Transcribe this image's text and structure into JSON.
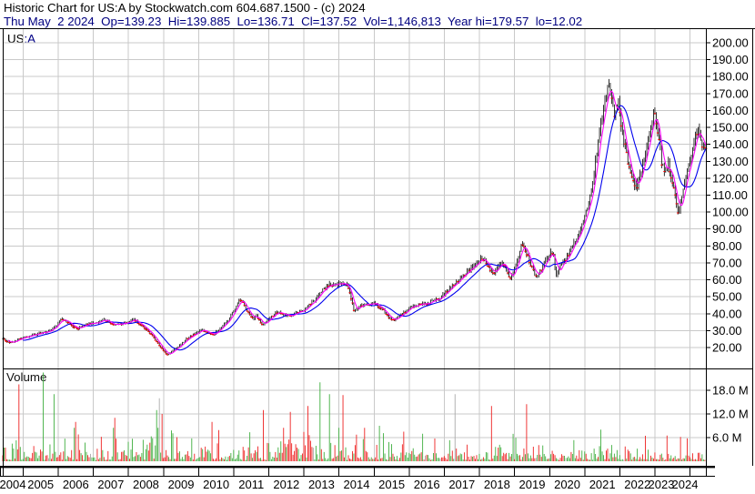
{
  "header": {
    "line1": "Historic Chart for US:A by Stockwatch.com 604.687.1500 - (c) 2024",
    "line2": "Thu May  2 2024  Op=139.23  Hi=139.885  Lo=136.71  Cl=137.52  Vol=1,146,813  Year hi=179.57  lo=12.02"
  },
  "symbol": {
    "prefix": "US",
    "suffix": ":A"
  },
  "volume_label": "Volume",
  "chart_data": {
    "type": "candlestick+volume",
    "symbol": "US:A",
    "x_axis": {
      "year_labels": [
        "2004",
        "2005",
        "2006",
        "2007",
        "2008",
        "2009",
        "2010",
        "2011",
        "2012",
        "2013",
        "2014",
        "2015",
        "2016",
        "2017",
        "2018",
        "2019",
        "2020",
        "2021",
        "2022",
        "2023",
        "2024"
      ]
    },
    "price_axis": {
      "tick_labels": [
        "200.00",
        "190.00",
        "180.00",
        "170.00",
        "160.00",
        "150.00",
        "140.00",
        "130.00",
        "120.00",
        "110.00",
        "100.00",
        "90.00",
        "80.00",
        "70.00",
        "60.00",
        "50.00",
        "40.00",
        "30.00",
        "20.00"
      ],
      "min": 20,
      "max": 200,
      "grid": true
    },
    "volume_axis": {
      "tick_labels": [
        "18.0 M",
        "12.0 M",
        "6.0 M"
      ],
      "unit": "M",
      "grid": true
    },
    "t_min": 2004.42,
    "t_max": 2024.45,
    "bars_per_year": 26,
    "ma_fast_bars": 5,
    "ma_slow_bars": 16,
    "seed": 20240502,
    "price_anchors": [
      [
        2004.42,
        25.5
      ],
      [
        2004.55,
        23.5
      ],
      [
        2004.7,
        23
      ],
      [
        2004.85,
        24.5
      ],
      [
        2005.0,
        26
      ],
      [
        2005.2,
        27
      ],
      [
        2005.4,
        28
      ],
      [
        2005.6,
        29
      ],
      [
        2005.8,
        30.5
      ],
      [
        2005.95,
        33
      ],
      [
        2006.08,
        37
      ],
      [
        2006.2,
        36.5
      ],
      [
        2006.32,
        34
      ],
      [
        2006.45,
        32
      ],
      [
        2006.55,
        31
      ],
      [
        2006.7,
        33
      ],
      [
        2006.85,
        34
      ],
      [
        2007.0,
        34.5
      ],
      [
        2007.15,
        35
      ],
      [
        2007.3,
        36.3
      ],
      [
        2007.45,
        35
      ],
      [
        2007.6,
        33
      ],
      [
        2007.75,
        33.5
      ],
      [
        2007.9,
        34.5
      ],
      [
        2008.05,
        35.5
      ],
      [
        2008.15,
        36.8
      ],
      [
        2008.3,
        34
      ],
      [
        2008.45,
        32
      ],
      [
        2008.6,
        29
      ],
      [
        2008.75,
        25
      ],
      [
        2008.9,
        21
      ],
      [
        2009.0,
        18
      ],
      [
        2009.1,
        15.5
      ],
      [
        2009.2,
        17
      ],
      [
        2009.35,
        19.5
      ],
      [
        2009.5,
        22
      ],
      [
        2009.65,
        25
      ],
      [
        2009.8,
        27
      ],
      [
        2009.95,
        29
      ],
      [
        2010.1,
        30.5
      ],
      [
        2010.25,
        29
      ],
      [
        2010.4,
        27.5
      ],
      [
        2010.55,
        30
      ],
      [
        2010.7,
        33
      ],
      [
        2010.85,
        36.5
      ],
      [
        2011.0,
        42
      ],
      [
        2011.12,
        47
      ],
      [
        2011.22,
        48.5
      ],
      [
        2011.33,
        44
      ],
      [
        2011.45,
        40
      ],
      [
        2011.55,
        36.5
      ],
      [
        2011.65,
        39
      ],
      [
        2011.8,
        33.5
      ],
      [
        2011.95,
        35.5
      ],
      [
        2012.1,
        38.5
      ],
      [
        2012.25,
        41.5
      ],
      [
        2012.4,
        40
      ],
      [
        2012.55,
        38.5
      ],
      [
        2012.7,
        39.5
      ],
      [
        2012.85,
        41
      ],
      [
        2013.0,
        42.5
      ],
      [
        2013.15,
        45
      ],
      [
        2013.3,
        48
      ],
      [
        2013.45,
        52
      ],
      [
        2013.6,
        55
      ],
      [
        2013.75,
        57.5
      ],
      [
        2013.9,
        57
      ],
      [
        2014.05,
        58
      ],
      [
        2014.2,
        57.5
      ],
      [
        2014.3,
        53
      ],
      [
        2014.42,
        42.5
      ],
      [
        2014.55,
        44
      ],
      [
        2014.7,
        46
      ],
      [
        2014.85,
        45
      ],
      [
        2015.0,
        46
      ],
      [
        2015.15,
        44
      ],
      [
        2015.3,
        41
      ],
      [
        2015.45,
        37.5
      ],
      [
        2015.55,
        36
      ],
      [
        2015.7,
        38.5
      ],
      [
        2015.85,
        40.5
      ],
      [
        2016.0,
        43
      ],
      [
        2016.15,
        44.5
      ],
      [
        2016.3,
        45.5
      ],
      [
        2016.5,
        46
      ],
      [
        2016.7,
        47.5
      ],
      [
        2016.85,
        49
      ],
      [
        2017.0,
        52
      ],
      [
        2017.2,
        56
      ],
      [
        2017.4,
        60
      ],
      [
        2017.6,
        64
      ],
      [
        2017.8,
        68
      ],
      [
        2017.95,
        71
      ],
      [
        2018.08,
        73
      ],
      [
        2018.25,
        68
      ],
      [
        2018.4,
        63.5
      ],
      [
        2018.55,
        69
      ],
      [
        2018.65,
        71.5
      ],
      [
        2018.78,
        65
      ],
      [
        2018.88,
        60.5
      ],
      [
        2019.0,
        66
      ],
      [
        2019.1,
        73
      ],
      [
        2019.2,
        81
      ],
      [
        2019.3,
        78
      ],
      [
        2019.4,
        72
      ],
      [
        2019.5,
        67
      ],
      [
        2019.62,
        61.5
      ],
      [
        2019.75,
        66
      ],
      [
        2019.88,
        71
      ],
      [
        2020.0,
        75
      ],
      [
        2020.1,
        77
      ],
      [
        2020.18,
        62
      ],
      [
        2020.3,
        68
      ],
      [
        2020.45,
        72
      ],
      [
        2020.6,
        78
      ],
      [
        2020.75,
        84
      ],
      [
        2020.9,
        90
      ],
      [
        2021.0,
        97
      ],
      [
        2021.1,
        104
      ],
      [
        2021.2,
        114
      ],
      [
        2021.3,
        128
      ],
      [
        2021.4,
        143
      ],
      [
        2021.5,
        155
      ],
      [
        2021.6,
        168
      ],
      [
        2021.68,
        178
      ],
      [
        2021.76,
        169
      ],
      [
        2021.85,
        158
      ],
      [
        2021.95,
        164
      ],
      [
        2022.05,
        150
      ],
      [
        2022.15,
        139
      ],
      [
        2022.25,
        127
      ],
      [
        2022.35,
        120
      ],
      [
        2022.5,
        114.5
      ],
      [
        2022.6,
        123
      ],
      [
        2022.7,
        132
      ],
      [
        2022.8,
        142
      ],
      [
        2022.9,
        152
      ],
      [
        2022.98,
        159
      ],
      [
        2023.08,
        148
      ],
      [
        2023.18,
        130
      ],
      [
        2023.28,
        124
      ],
      [
        2023.38,
        129
      ],
      [
        2023.48,
        120
      ],
      [
        2023.58,
        108
      ],
      [
        2023.67,
        99
      ],
      [
        2023.77,
        110
      ],
      [
        2023.87,
        119
      ],
      [
        2023.95,
        127
      ],
      [
        2024.05,
        136
      ],
      [
        2024.15,
        147
      ],
      [
        2024.22,
        149
      ],
      [
        2024.32,
        141
      ],
      [
        2024.45,
        137.5
      ]
    ],
    "volume_profile": [
      [
        2004.42,
        1.15
      ],
      [
        2009,
        1.15
      ],
      [
        2013,
        1.05
      ],
      [
        2015,
        0.85
      ],
      [
        2018,
        0.75
      ],
      [
        2020,
        0.6
      ],
      [
        2024.45,
        0.55
      ]
    ],
    "volume_spikes": [
      [
        2004.9,
        19.5,
        "r"
      ],
      [
        2005.58,
        22.5,
        "g"
      ],
      [
        2005.87,
        17,
        "g"
      ],
      [
        2006.5,
        10,
        "r"
      ],
      [
        2007.6,
        11,
        "r"
      ],
      [
        2008.8,
        13,
        "g"
      ],
      [
        2008.89,
        16,
        "n"
      ],
      [
        2008.97,
        12,
        "r"
      ],
      [
        2010.4,
        10,
        "r"
      ],
      [
        2011.85,
        13,
        "r"
      ],
      [
        2012.63,
        12.5,
        "r"
      ],
      [
        2013.12,
        14,
        "r"
      ],
      [
        2013.47,
        20,
        "g"
      ],
      [
        2013.72,
        17,
        "g"
      ],
      [
        2014.13,
        16.8,
        "r"
      ],
      [
        2015.14,
        9,
        "g"
      ],
      [
        2015.85,
        7.5,
        "r"
      ],
      [
        2016.39,
        7,
        "g"
      ],
      [
        2017.3,
        17,
        "n"
      ],
      [
        2018.35,
        14,
        "r"
      ],
      [
        2019.35,
        14.5,
        "r"
      ],
      [
        2021.45,
        8,
        "g"
      ],
      [
        2023.35,
        6.5,
        "r"
      ]
    ],
    "colors": {
      "candle": "#000000",
      "close_tick": "#ff0000",
      "ma_fast": "#ff00ff",
      "ma_slow": "#0000ee",
      "vol_up": "#3fae3f",
      "vol_down": "#ee2222",
      "vol_neutral": "#aaaaaa",
      "grid": "#c9c9c9",
      "border": "#000000",
      "header2": "#000080"
    }
  }
}
